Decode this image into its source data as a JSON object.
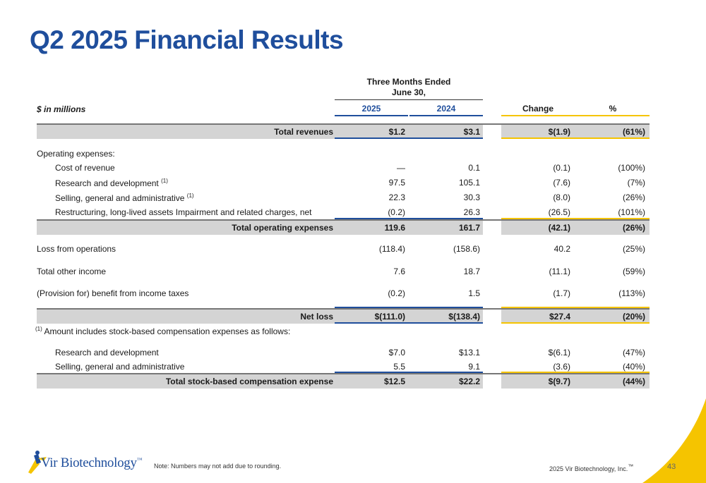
{
  "title": "Q2 2025 Financial Results",
  "header": {
    "period_line1": "Three Months Ended",
    "period_line2": "June 30,",
    "unit_label": "$ in millions",
    "col_2025": "2025",
    "col_2024": "2024",
    "col_change": "Change",
    "col_pct": "%"
  },
  "accent_colors": {
    "blue": "#1f4e9c",
    "yellow": "#f5c400"
  },
  "rows": [
    {
      "label": "Total revenues",
      "v2025": "$1.2",
      "v2024": "$3.1",
      "change": "$(1.9)",
      "pct": "(61%)",
      "total": true
    },
    {
      "label": "Operating expenses:",
      "section": true
    },
    {
      "label": "Cost of revenue",
      "v2025": "—",
      "v2024": "0.1",
      "change": "(0.1)",
      "pct": "(100%)"
    },
    {
      "label": "Research and development",
      "footnote": "(1)",
      "v2025": "97.5",
      "v2024": "105.1",
      "change": "(7.6)",
      "pct": "(7%)"
    },
    {
      "label": "Selling, general and administrative",
      "footnote": "(1)",
      "v2025": "22.3",
      "v2024": "30.3",
      "change": "(8.0)",
      "pct": "(26%)"
    },
    {
      "label": "Restructuring, long-lived assets Impairment and related charges, net",
      "v2025": "(0.2)",
      "v2024": "26.3",
      "change": "(26.5)",
      "pct": "(101%)"
    },
    {
      "label": "Total operating expenses",
      "v2025": "119.6",
      "v2024": "161.7",
      "change": "(42.1)",
      "pct": "(26%)",
      "total": true
    },
    {
      "label": "Loss from operations",
      "v2025": "(118.4)",
      "v2024": "(158.6)",
      "change": "40.2",
      "pct": "(25%)"
    },
    {
      "label": "Total other income",
      "v2025": "7.6",
      "v2024": "18.7",
      "change": "(11.1)",
      "pct": "(59%)"
    },
    {
      "label": "(Provision for) benefit from income taxes",
      "v2025": "(0.2)",
      "v2024": "1.5",
      "change": "(1.7)",
      "pct": "(113%)"
    },
    {
      "label": "Net loss",
      "v2025": "$(111.0)",
      "v2024": "$(138.4)",
      "change": "$27.4",
      "pct": "(20%)",
      "total": true
    }
  ],
  "sbc_note": {
    "marker": "(1)",
    "text": "Amount includes stock-based compensation expenses as follows:"
  },
  "sbc_rows": [
    {
      "label": "Research and development",
      "v2025": "$7.0",
      "v2024": "$13.1",
      "change": "$(6.1)",
      "pct": "(47%)"
    },
    {
      "label": "Selling, general and administrative",
      "v2025": "5.5",
      "v2024": "9.1",
      "change": "(3.6)",
      "pct": "(40%)"
    },
    {
      "label": "Total stock-based compensation expense",
      "v2025": "$12.5",
      "v2024": "$22.2",
      "change": "$(9.7)",
      "pct": "(44%)",
      "total": true
    }
  ],
  "footer": {
    "logo_text": "Vir Biotechnology",
    "logo_tm": "™",
    "note": "Note: Numbers may not add due to rounding.",
    "copyright": "2025 Vir Biotechnology, Inc.",
    "copyright_tm": "™",
    "page_number": "43"
  }
}
